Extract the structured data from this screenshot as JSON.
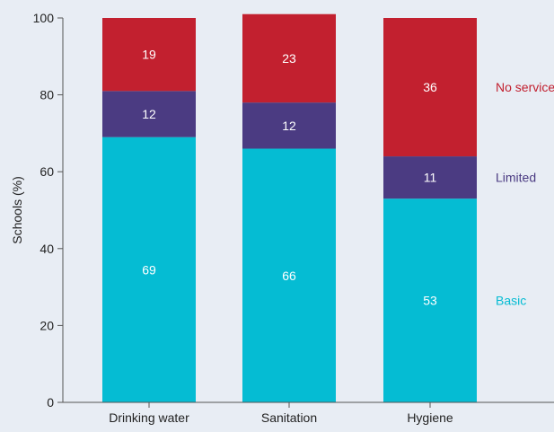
{
  "chart_data": {
    "type": "bar",
    "stacked": true,
    "categories": [
      "Drinking water",
      "Sanitation",
      "Hygiene"
    ],
    "series": [
      {
        "name": "Basic",
        "values": [
          69,
          66,
          53
        ],
        "color": "#05bcd3"
      },
      {
        "name": "Limited",
        "values": [
          12,
          12,
          11
        ],
        "color": "#4b3b82"
      },
      {
        "name": "No service",
        "values": [
          19,
          23,
          36
        ],
        "color": "#c2202f"
      }
    ],
    "ylabel": "Schools (%)",
    "xlabel": "",
    "ylim": [
      0,
      100
    ],
    "yticks": [
      0,
      20,
      40,
      60,
      80,
      100
    ],
    "grid": false,
    "legend_placement": "right, inline beside last bar",
    "label_color": "#ffffff"
  }
}
